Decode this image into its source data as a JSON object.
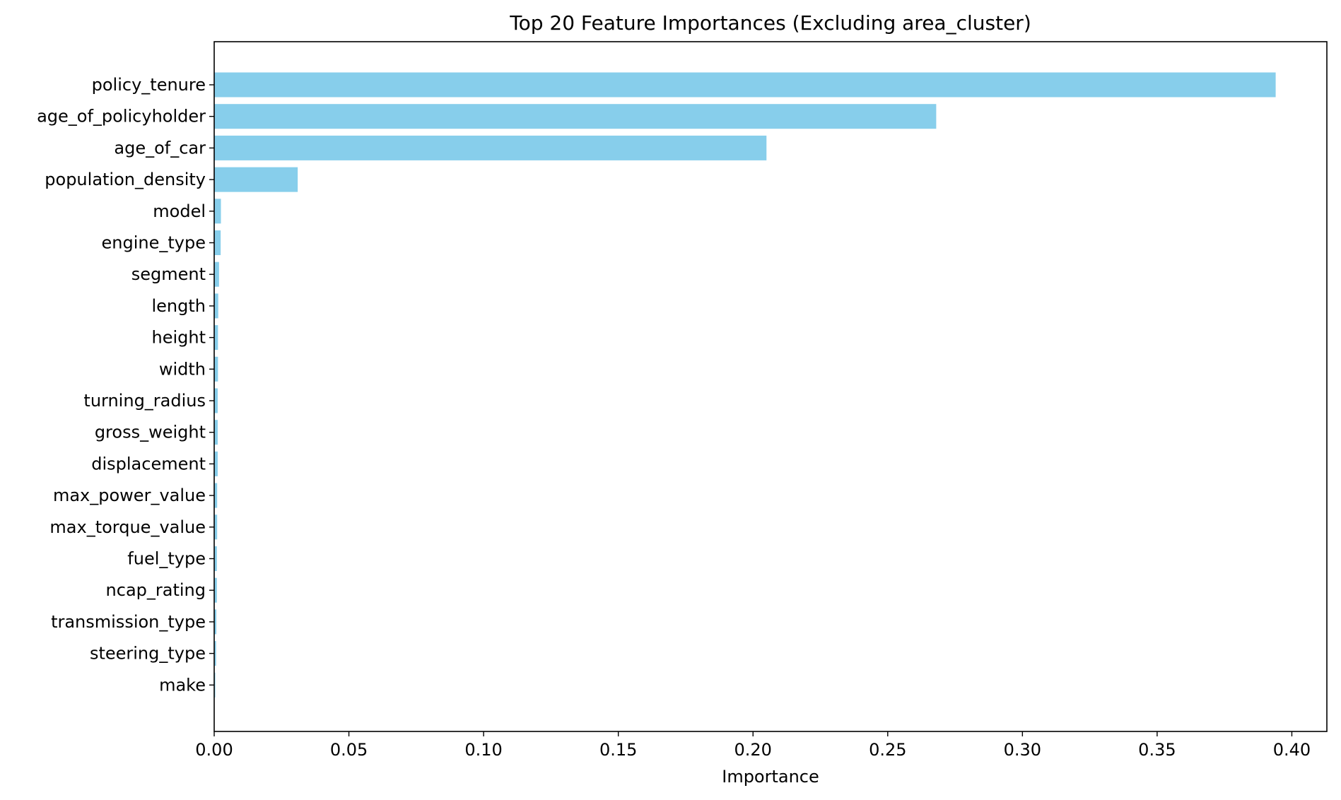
{
  "chart_data": {
    "type": "bar",
    "orientation": "horizontal",
    "title": "Top 20 Feature Importances (Excluding area_cluster)",
    "xlabel": "Importance",
    "ylabel": "",
    "categories": [
      "policy_tenure",
      "age_of_policyholder",
      "age_of_car",
      "population_density",
      "model",
      "engine_type",
      "segment",
      "length",
      "height",
      "width",
      "turning_radius",
      "gross_weight",
      "displacement",
      "max_power_value",
      "max_torque_value",
      "fuel_type",
      "ncap_rating",
      "transmission_type",
      "steering_type",
      "make"
    ],
    "values": [
      0.394,
      0.268,
      0.205,
      0.031,
      0.0025,
      0.0024,
      0.0018,
      0.0015,
      0.0014,
      0.0014,
      0.0013,
      0.0013,
      0.0013,
      0.0011,
      0.0011,
      0.001,
      0.001,
      0.0008,
      0.0007,
      0.0004
    ],
    "xlim": [
      0.0,
      0.413
    ],
    "xticks": [
      0.0,
      0.05,
      0.1,
      0.15,
      0.2,
      0.25,
      0.3,
      0.35,
      0.4
    ],
    "xtick_labels": [
      "0.00",
      "0.05",
      "0.10",
      "0.15",
      "0.20",
      "0.25",
      "0.30",
      "0.35",
      "0.40"
    ],
    "bar_color": "#87ceeb",
    "grid": false,
    "legend": false
  }
}
